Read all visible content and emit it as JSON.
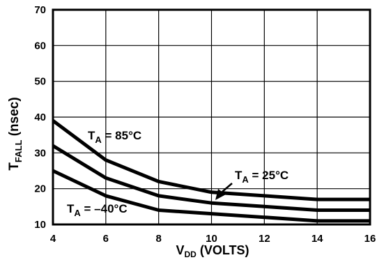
{
  "chart_data": {
    "type": "line",
    "title": "",
    "xlabel": {
      "main": "V",
      "sub": "DD",
      "rest": " (VOLTS)"
    },
    "ylabel": {
      "main": "T",
      "sub": "FALL",
      "rest": " (nsec)"
    },
    "xlim": [
      4,
      16
    ],
    "ylim": [
      10,
      70
    ],
    "xticks": [
      4,
      6,
      8,
      10,
      12,
      14,
      16
    ],
    "yticks": [
      10,
      20,
      30,
      40,
      50,
      60,
      70
    ],
    "grid": true,
    "series": [
      {
        "name": "T_A = 85°C",
        "x": [
          4,
          6,
          8,
          10,
          12,
          14,
          16
        ],
        "y": [
          39,
          28,
          22,
          19,
          18,
          17,
          17
        ]
      },
      {
        "name": "T_A = 25°C",
        "x": [
          4,
          6,
          8,
          10,
          12,
          14,
          16
        ],
        "y": [
          32,
          23,
          18,
          16,
          15,
          14,
          14
        ]
      },
      {
        "name": "T_A = -40°C",
        "x": [
          4,
          6,
          8,
          10,
          12,
          14,
          16
        ],
        "y": [
          25,
          18,
          14,
          13,
          12,
          11,
          11
        ]
      }
    ],
    "annotations": [
      {
        "main": "T",
        "sub": "A",
        "rest": " = 85°C"
      },
      {
        "main": "T",
        "sub": "A",
        "rest": " = 25°C"
      },
      {
        "main": "T",
        "sub": "A",
        "rest": " =  –40°C"
      }
    ]
  }
}
